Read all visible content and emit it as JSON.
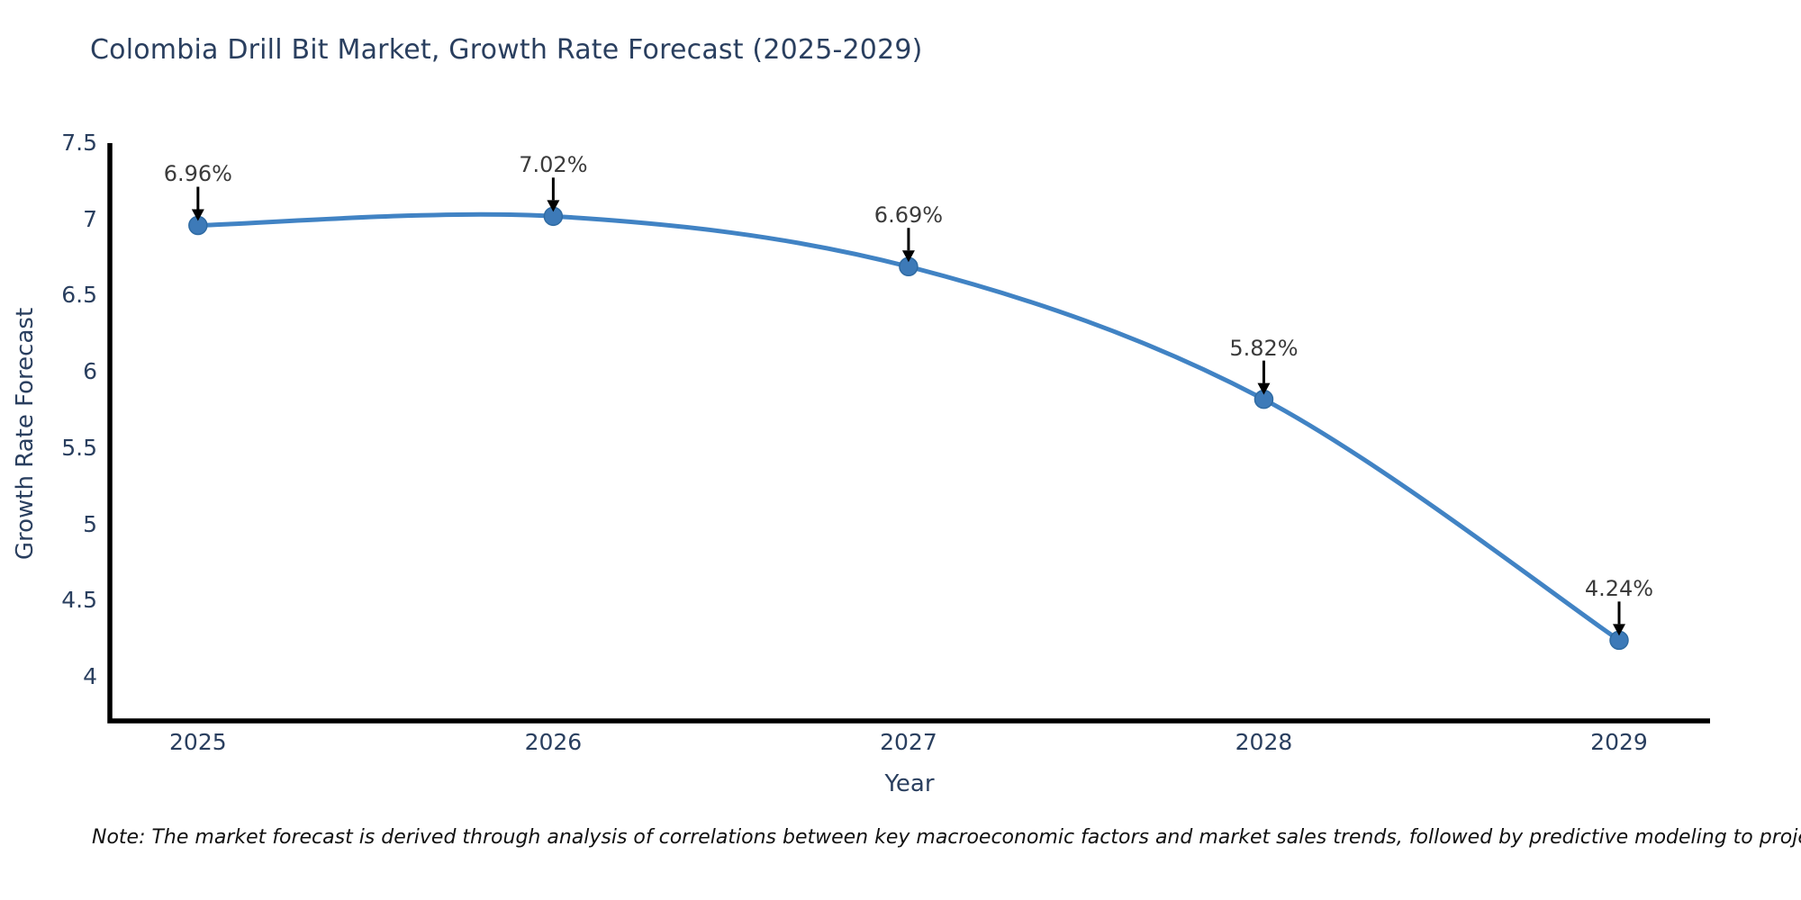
{
  "chart_data": {
    "type": "line",
    "title": "Colombia Drill Bit Market, Growth Rate Forecast (2025-2029)",
    "xlabel": "Year",
    "ylabel": "Growth Rate Forecast",
    "x": [
      2025,
      2026,
      2027,
      2028,
      2029
    ],
    "y": [
      6.96,
      7.02,
      6.69,
      5.82,
      4.24
    ],
    "point_labels": [
      "6.96%",
      "7.02%",
      "6.69%",
      "5.82%",
      "4.24%"
    ],
    "xticks": [
      2025,
      2026,
      2027,
      2028,
      2029
    ],
    "yticks": [
      4,
      4.5,
      5,
      5.5,
      6,
      6.5,
      7,
      7.5
    ],
    "xlim": [
      2024.752,
      2029.256
    ],
    "ylim": [
      3.711,
      7.5
    ],
    "grid": false,
    "legend": false,
    "line_style": "spline",
    "colors": {
      "line": "#4183c4",
      "marker": "#3d7ab8",
      "marker_edge": "#2f6ba3",
      "axis_line": "#000000",
      "axis_text": "#2a3f5f",
      "annotation_text": "#3b3b3b",
      "annotation_arrow": "#000000",
      "background": "#ffffff"
    }
  },
  "footnote": {
    "text": "Note: The market forecast is derived through analysis of correlations between key macroeconomic factors and market sales trends, followed by predictive modeling to project future sales"
  }
}
